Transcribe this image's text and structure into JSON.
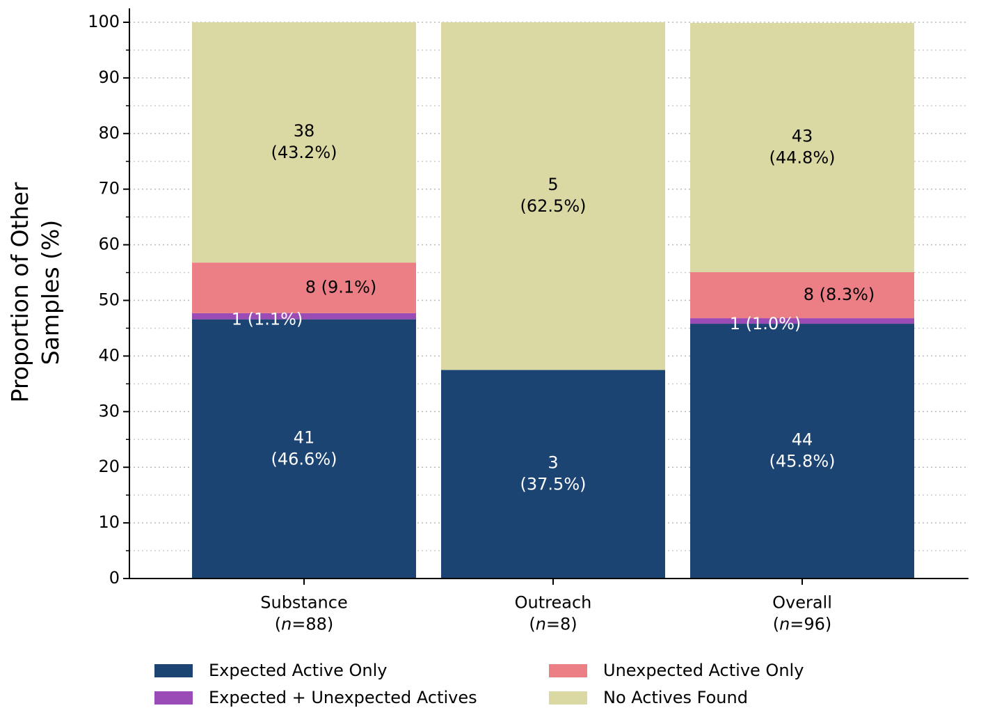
{
  "chart_data": {
    "type": "stacked_bar",
    "y_label": "Proportion of Other\nSamples (%)",
    "categories": [
      "Substance\n(n=88)",
      "Outreach\n(n=8)",
      "Overall\n(n=96)"
    ],
    "series": [
      {
        "name": "Expected Active Only",
        "color": "#1b4473",
        "values": [
          46.6,
          37.5,
          45.8
        ],
        "value_labels": [
          "41\n(46.6%)",
          "3\n(37.5%)",
          "44\n(45.8%)"
        ]
      },
      {
        "name": "Expected + Unexpected Actives",
        "color": "#9a4bb5",
        "values": [
          1.1,
          0,
          1.0
        ],
        "value_labels": [
          "1 (1.1%)",
          null,
          "1 (1.0%)"
        ]
      },
      {
        "name": "Unexpected Active Only",
        "color": "#ec7f85",
        "values": [
          9.1,
          0,
          8.3
        ],
        "value_labels": [
          "8 (9.1%)",
          null,
          "8 (8.3%)"
        ]
      },
      {
        "name": "No Actives Found",
        "color": "#dad9a3",
        "values": [
          43.2,
          62.5,
          44.8
        ],
        "value_labels": [
          "38\n(43.2%)",
          "5\n(62.5%)",
          "43\n(44.8%)"
        ]
      }
    ],
    "ylim": [
      0,
      100
    ],
    "yticks": [
      0,
      10,
      20,
      30,
      40,
      50,
      60,
      70,
      80,
      90,
      100
    ],
    "yminorticks": [
      5,
      15,
      25,
      35,
      45,
      55,
      65,
      75,
      85,
      95
    ],
    "grid": true
  }
}
